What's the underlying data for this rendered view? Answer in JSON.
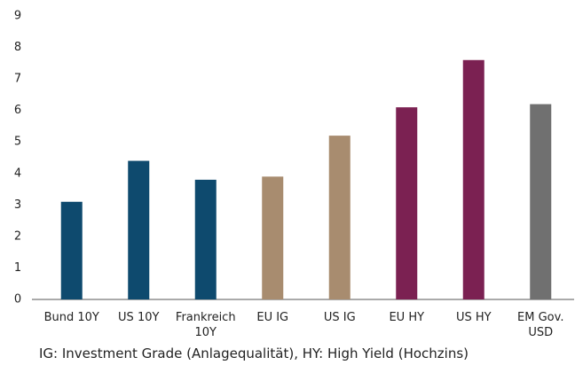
{
  "chart_data": {
    "type": "bar",
    "categories": [
      "Bund 10Y",
      "US 10Y",
      "Frankreich 10Y",
      "EU IG",
      "US IG",
      "EU HY",
      "US HY",
      "EM Gov. USD"
    ],
    "values": [
      3.1,
      4.4,
      3.8,
      3.9,
      5.2,
      6.1,
      7.6,
      6.2
    ],
    "colors": [
      "#0e4a6e",
      "#0e4a6e",
      "#0e4a6e",
      "#a88c6f",
      "#a88c6f",
      "#7b2152",
      "#7b2152",
      "#707070"
    ],
    "ylim": [
      0,
      9
    ],
    "yticks": [
      0,
      1,
      2,
      3,
      4,
      5,
      6,
      7,
      8,
      9
    ],
    "grid": false,
    "note": "IG: Investment Grade (Anlagequalität), HY: High Yield (Hochzins)"
  }
}
